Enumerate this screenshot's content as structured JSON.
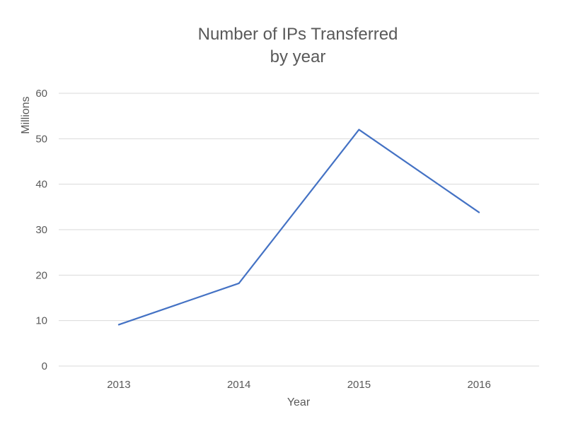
{
  "chart_data": {
    "type": "line",
    "title_lines": [
      "Number of IPs Transferred",
      "by year"
    ],
    "xlabel": "Year",
    "ylabel": "Millions",
    "categories": [
      "2013",
      "2014",
      "2015",
      "2016"
    ],
    "series": [
      {
        "values": [
          9.1,
          18.2,
          52.0,
          33.8
        ]
      }
    ],
    "yticks": [
      "0",
      "10",
      "20",
      "30",
      "40",
      "50",
      "60"
    ],
    "ylim": [
      0,
      60
    ],
    "grid": true,
    "legend": "none",
    "colors": {
      "series": "#4472c4",
      "grid": "#d9d9d9",
      "text": "#595959"
    }
  }
}
